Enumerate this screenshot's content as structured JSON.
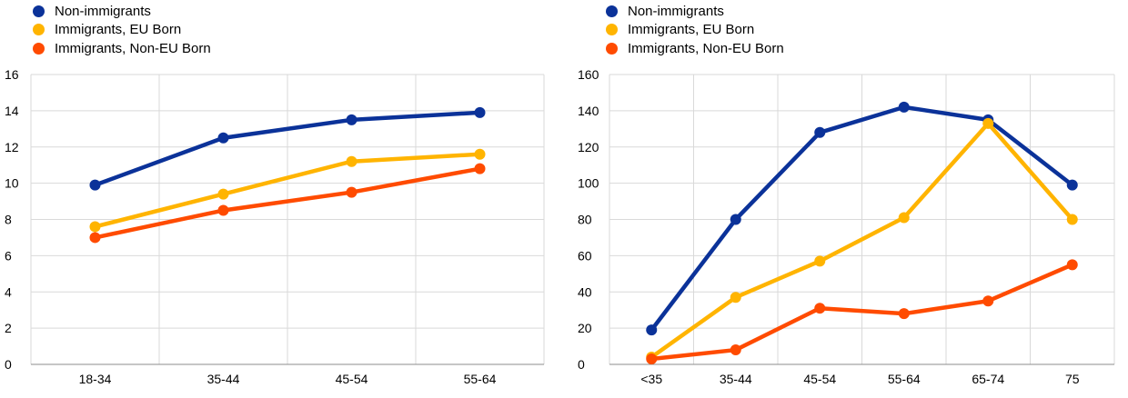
{
  "colors": {
    "non_immigrants": "#0b3299",
    "eu_born": "#ffb400",
    "non_eu_born": "#ff4b00",
    "grid": "#d9d9d9",
    "axis": "#8c8c8c"
  },
  "chart_data": [
    {
      "type": "line",
      "categories": [
        "18-34",
        "35-44",
        "45-54",
        "55-64"
      ],
      "ylim": [
        0,
        16
      ],
      "yticks": [
        0,
        2,
        4,
        6,
        8,
        10,
        12,
        14,
        16
      ],
      "grid": true,
      "legend_position": "top-left",
      "series": [
        {
          "name": "Non-immigrants",
          "color": "#0b3299",
          "values": [
            9.9,
            12.5,
            13.5,
            13.9
          ]
        },
        {
          "name": "Immigrants, EU Born",
          "color": "#ffb400",
          "values": [
            7.6,
            9.4,
            11.2,
            11.6
          ]
        },
        {
          "name": "Immigrants, Non-EU Born",
          "color": "#ff4b00",
          "values": [
            7.0,
            8.5,
            9.5,
            10.8
          ]
        }
      ]
    },
    {
      "type": "line",
      "categories": [
        "<35",
        "35-44",
        "45-54",
        "55-64",
        "65-74",
        "75"
      ],
      "ylim": [
        0,
        160
      ],
      "yticks": [
        0,
        20,
        40,
        60,
        80,
        100,
        120,
        140,
        160
      ],
      "grid": true,
      "legend_position": "top-left",
      "series": [
        {
          "name": "Non-immigrants",
          "color": "#0b3299",
          "values": [
            19,
            80,
            128,
            142,
            135,
            99
          ]
        },
        {
          "name": "Immigrants, EU Born",
          "color": "#ffb400",
          "values": [
            4,
            37,
            57,
            81,
            133,
            80
          ]
        },
        {
          "name": "Immigrants, Non-EU Born",
          "color": "#ff4b00",
          "values": [
            3,
            8,
            31,
            28,
            35,
            55
          ]
        }
      ]
    }
  ]
}
